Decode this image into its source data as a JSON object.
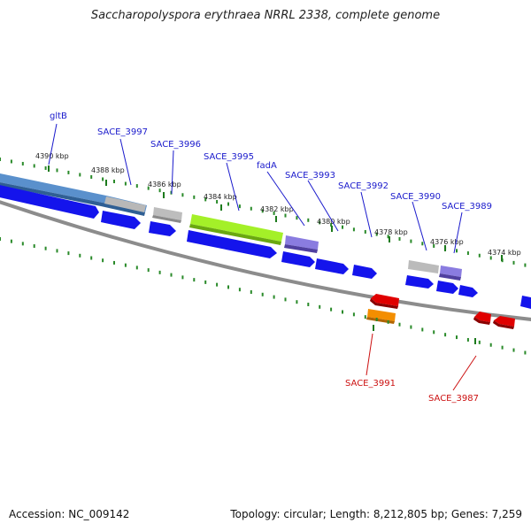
{
  "title": "Saccharopolyspora erythraea NRRL 2338, complete genome",
  "footer": {
    "accession": "Accession: NC_009142",
    "stats": "Topology: circular; Length: 8,212,805 bp; Genes: 7,259"
  },
  "scale_ticks": [
    "4390 kbp",
    "4388 kbp",
    "4386 kbp",
    "4384 kbp",
    "4382 kbp",
    "4380 kbp",
    "4378 kbp",
    "4376 kbp",
    "4374 kbp"
  ],
  "labels_forward": [
    "gltB",
    "SACE_3997",
    "SACE_3996",
    "SACE_3995",
    "fadA",
    "SACE_3993",
    "SACE_3992",
    "SACE_3990",
    "SACE_3989"
  ],
  "labels_reverse": [
    "SACE_3991",
    "SACE_3987"
  ],
  "colors": {
    "forward_label": "#1a1acc",
    "reverse_label": "#cc1111",
    "cds_blue": "#1010e6",
    "cds_red": "#e00000",
    "cds_orange": "#f08c00",
    "cds_gray": "#b4b4b4",
    "cds_lime": "#9ef01e",
    "cds_purple": "#7a6ad0",
    "cds_steel": "#4f88c6",
    "backbone": "#888888",
    "dots": "#2a8a2a"
  }
}
